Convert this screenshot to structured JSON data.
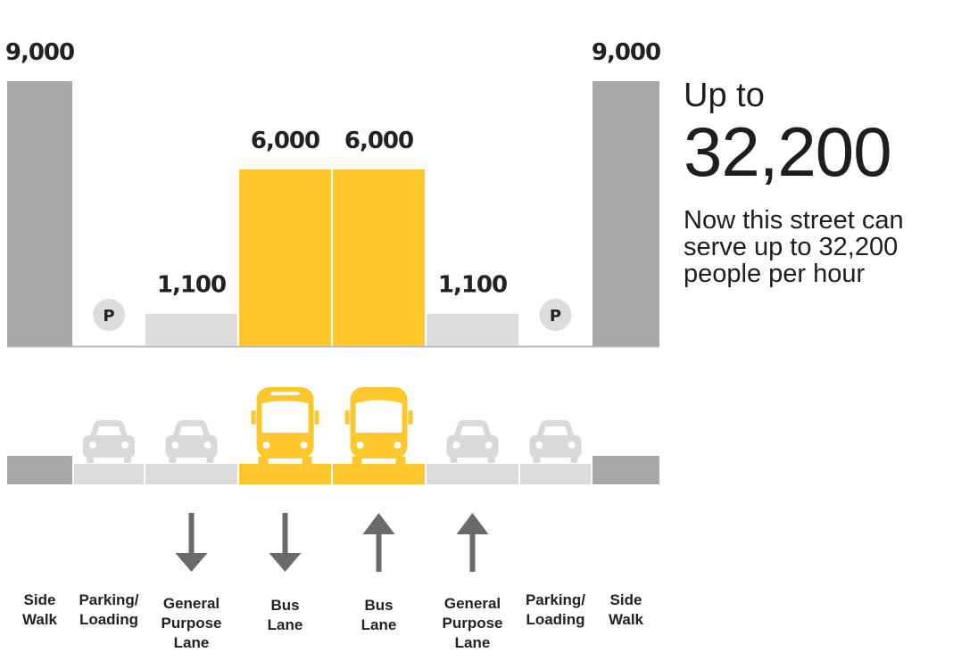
{
  "colors": {
    "sidewalk": "#a7a7aa",
    "lane": "#dcdcdc",
    "bus": "#ffc72c",
    "arrow": "#6a6a6a",
    "text": "#1e1e1e"
  },
  "summary": {
    "up_to": "Up to",
    "total": "32,200",
    "description": "Now this street can serve up to 32,200 people per hour"
  },
  "chart_data": {
    "type": "bar",
    "categories": [
      "Side Walk",
      "Parking/ Loading",
      "General Purpose Lane",
      "Bus Lane",
      "Bus Lane",
      "General Purpose Lane",
      "Parking/ Loading",
      "Side Walk"
    ],
    "values": [
      9000,
      0,
      1100,
      6000,
      6000,
      1100,
      0,
      9000
    ],
    "value_labels": [
      "9,000",
      "",
      "1,100",
      "6,000",
      "6,000",
      "1,100",
      "",
      ""
    ],
    "extra_labels": {
      "right_sidewalk": "9,000"
    },
    "parking_marker": "P",
    "lane_kinds": [
      "sidewalk",
      "parking",
      "lane",
      "bus",
      "bus",
      "lane",
      "parking",
      "sidewalk"
    ],
    "vehicles": [
      "none",
      "car",
      "car",
      "bus",
      "bus",
      "car",
      "car",
      "none"
    ],
    "directions": [
      "none",
      "none",
      "down",
      "down",
      "up",
      "up",
      "none",
      "none"
    ],
    "label_lines": [
      [
        "Side",
        "Walk"
      ],
      [
        "Parking/",
        "Loading"
      ],
      [
        "General",
        "Purpose",
        "Lane"
      ],
      [
        "Bus",
        "Lane"
      ],
      [
        "Bus",
        "Lane"
      ],
      [
        "General",
        "Purpose",
        "Lane"
      ],
      [
        "Parking/",
        "Loading"
      ],
      [
        "Side",
        "Walk"
      ]
    ],
    "ylim": [
      0,
      9000
    ]
  }
}
